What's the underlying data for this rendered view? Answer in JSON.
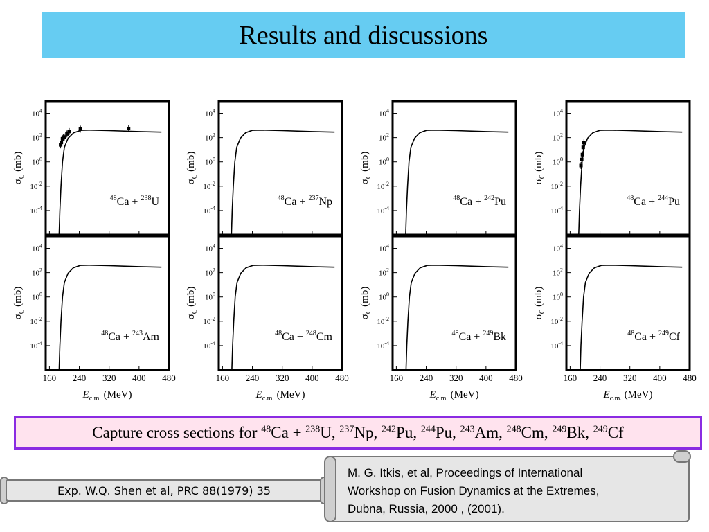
{
  "slide": {
    "title": "Results and discussions",
    "caption": {
      "prefix": "Capture cross sections for ",
      "projectile_mass": "48",
      "projectile": "Ca + ",
      "targets": [
        {
          "mass": "238",
          "symbol": "U",
          "sep": ", "
        },
        {
          "mass": "237",
          "symbol": "Np",
          "sep": ", "
        },
        {
          "mass": "242",
          "symbol": "Pu",
          "sep": ", "
        },
        {
          "mass": "244",
          "symbol": "Pu",
          "sep": ", "
        },
        {
          "mass": "243",
          "symbol": "Am",
          "sep": ", "
        },
        {
          "mass": "248",
          "symbol": "Cm",
          "sep": ", "
        },
        {
          "mass": "249",
          "symbol": "Bk",
          "sep": ", "
        },
        {
          "mass": "249",
          "symbol": "Cf",
          "sep": ""
        }
      ]
    },
    "ref_exp": "Exp.  W.Q. Shen et al, PRC 88(1979) 35",
    "ref_itkis": [
      "M. G. Itkis, et al, Proceedings of International",
      "Workshop on Fusion Dynamics at the Extremes,",
      "Dubna, Russia, 2000 , (2001)."
    ]
  },
  "colors": {
    "title_bg": "#66ccf2",
    "caption_bg": "#ffe3ee",
    "caption_border": "#8a2be2",
    "scroll_bg": "#e6e6e6"
  },
  "chart_data": [
    {
      "type": "line",
      "reaction": {
        "proj_mass": "48",
        "proj": "Ca",
        "targ_mass": "238",
        "targ": "U"
      },
      "xlabel": "E_c.m. (MeV)",
      "ylabel": "σ_C (mb)",
      "xlim": [
        150,
        480
      ],
      "ylim_log10": [
        -6,
        5
      ],
      "x_ticks": [
        160,
        240,
        320,
        400,
        480
      ],
      "y_ticks_exp": [
        -4,
        -2,
        0,
        2,
        4
      ],
      "series": [
        {
          "x": [
            186,
            188,
            191,
            195,
            200,
            210,
            225,
            245,
            270,
            320,
            400,
            460
          ],
          "log10_y": [
            -6,
            -4,
            -2,
            0,
            1.2,
            1.95,
            2.4,
            2.6,
            2.62,
            2.58,
            2.5,
            2.45
          ]
        }
      ],
      "points": [
        {
          "x": [
            190,
            192,
            195,
            197,
            200,
            207,
            213,
            243,
            372
          ],
          "log10_y": [
            1.4,
            1.6,
            1.9,
            2.0,
            2.05,
            2.3,
            2.5,
            2.7,
            2.75
          ]
        }
      ]
    },
    {
      "type": "line",
      "reaction": {
        "proj_mass": "48",
        "proj": "Ca",
        "targ_mass": "237",
        "targ": "Np"
      },
      "xlabel": "",
      "ylabel": "σ_C (mb)",
      "xlim": [
        150,
        480
      ],
      "ylim_log10": [
        -6,
        5
      ],
      "x_ticks": [
        160,
        240,
        320,
        400,
        480
      ],
      "y_ticks_exp": [
        -4,
        -2,
        0,
        2,
        4
      ],
      "series": [
        {
          "x": [
            184,
            186,
            189,
            193,
            198,
            208,
            222,
            240,
            265,
            320,
            400,
            460
          ],
          "log10_y": [
            -6,
            -4,
            -2,
            0,
            1.2,
            1.95,
            2.4,
            2.6,
            2.62,
            2.58,
            2.5,
            2.45
          ]
        }
      ],
      "points": []
    },
    {
      "type": "line",
      "reaction": {
        "proj_mass": "48",
        "proj": "Ca",
        "targ_mass": "242",
        "targ": "Pu"
      },
      "xlabel": "",
      "ylabel": "σ_C (mb)",
      "xlim": [
        150,
        480
      ],
      "ylim_log10": [
        -6,
        5
      ],
      "x_ticks": [
        160,
        240,
        320,
        400,
        480
      ],
      "y_ticks_exp": [
        -4,
        -2,
        0,
        2,
        4
      ],
      "series": [
        {
          "x": [
            185,
            187,
            190,
            194,
            199,
            209,
            223,
            241,
            266,
            320,
            400,
            460
          ],
          "log10_y": [
            -6,
            -4,
            -2,
            0,
            1.2,
            1.95,
            2.4,
            2.6,
            2.62,
            2.58,
            2.5,
            2.45
          ]
        }
      ],
      "points": []
    },
    {
      "type": "line",
      "reaction": {
        "proj_mass": "48",
        "proj": "Ca",
        "targ_mass": "244",
        "targ": "Pu"
      },
      "xlabel": "",
      "ylabel": "σ_C (mb)",
      "xlim": [
        150,
        480
      ],
      "ylim_log10": [
        -6,
        5
      ],
      "x_ticks": [
        160,
        240,
        320,
        400,
        480
      ],
      "y_ticks_exp": [
        -4,
        -2,
        0,
        2,
        4
      ],
      "series": [
        {
          "x": [
            183,
            185,
            188,
            192,
            197,
            207,
            221,
            240,
            265,
            320,
            400,
            460
          ],
          "log10_y": [
            -6,
            -4,
            -2,
            0,
            1.2,
            1.95,
            2.4,
            2.6,
            2.62,
            2.58,
            2.5,
            2.45
          ]
        }
      ],
      "points": [
        {
          "x": [
            189,
            191,
            193,
            195,
            197
          ],
          "log10_y": [
            -0.3,
            0.2,
            0.6,
            1.2,
            1.6
          ]
        }
      ]
    },
    {
      "type": "line",
      "reaction": {
        "proj_mass": "48",
        "proj": "Ca",
        "targ_mass": "243",
        "targ": "Am"
      },
      "xlabel": "E_c.m. (MeV)",
      "ylabel": "σ_C (mb)",
      "xlim": [
        150,
        480
      ],
      "ylim_log10": [
        -6,
        5
      ],
      "x_ticks": [
        160,
        240,
        320,
        400,
        480
      ],
      "y_ticks_exp": [
        -4,
        -2,
        0,
        2,
        4
      ],
      "series": [
        {
          "x": [
            186,
            188,
            191,
            195,
            200,
            210,
            224,
            243,
            268,
            320,
            400,
            460
          ],
          "log10_y": [
            -6,
            -4,
            -2,
            0,
            1.2,
            1.95,
            2.4,
            2.6,
            2.62,
            2.58,
            2.5,
            2.45
          ]
        }
      ],
      "points": []
    },
    {
      "type": "line",
      "reaction": {
        "proj_mass": "48",
        "proj": "Ca",
        "targ_mass": "248",
        "targ": "Cm"
      },
      "xlabel": "E_c.m. (MeV)",
      "ylabel": "σ_C (mb)",
      "xlim": [
        150,
        480
      ],
      "ylim_log10": [
        -6,
        5
      ],
      "x_ticks": [
        160,
        240,
        320,
        400,
        480
      ],
      "y_ticks_exp": [
        -4,
        -2,
        0,
        2,
        4
      ],
      "series": [
        {
          "x": [
            185,
            187,
            190,
            194,
            199,
            209,
            223,
            242,
            267,
            320,
            400,
            460
          ],
          "log10_y": [
            -6,
            -4,
            -2,
            0,
            1.2,
            1.95,
            2.4,
            2.6,
            2.62,
            2.58,
            2.5,
            2.45
          ]
        }
      ],
      "points": []
    },
    {
      "type": "line",
      "reaction": {
        "proj_mass": "48",
        "proj": "Ca",
        "targ_mass": "249",
        "targ": "Bk"
      },
      "xlabel": "E_c.m. (MeV)",
      "ylabel": "σ_C (mb)",
      "xlim": [
        150,
        480
      ],
      "ylim_log10": [
        -6,
        5
      ],
      "x_ticks": [
        160,
        240,
        320,
        400,
        480
      ],
      "y_ticks_exp": [
        -4,
        -2,
        0,
        2,
        4
      ],
      "series": [
        {
          "x": [
            186,
            188,
            191,
            195,
            200,
            210,
            224,
            243,
            268,
            320,
            400,
            460
          ],
          "log10_y": [
            -6,
            -4,
            -2,
            0,
            1.2,
            1.95,
            2.4,
            2.6,
            2.62,
            2.58,
            2.5,
            2.45
          ]
        }
      ],
      "points": []
    },
    {
      "type": "line",
      "reaction": {
        "proj_mass": "48",
        "proj": "Ca",
        "targ_mass": "249",
        "targ": "Cf"
      },
      "xlabel": "E_c.m. (MeV)",
      "ylabel": "σ_C (mb)",
      "xlim": [
        150,
        480
      ],
      "ylim_log10": [
        -6,
        5
      ],
      "x_ticks": [
        160,
        240,
        320,
        400,
        480
      ],
      "y_ticks_exp": [
        -4,
        -2,
        0,
        2,
        4
      ],
      "series": [
        {
          "x": [
            187,
            189,
            192,
            196,
            201,
            211,
            225,
            244,
            269,
            320,
            400,
            460
          ],
          "log10_y": [
            -6,
            -4,
            -2,
            0,
            1.2,
            1.95,
            2.4,
            2.6,
            2.62,
            2.58,
            2.5,
            2.45
          ]
        }
      ],
      "points": []
    }
  ]
}
